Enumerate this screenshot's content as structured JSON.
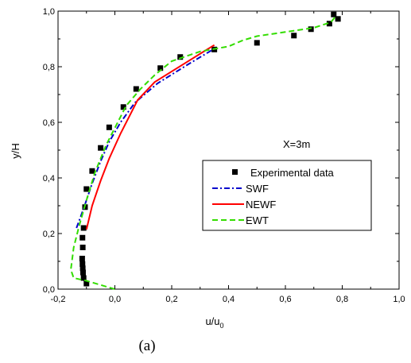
{
  "caption": "(a)",
  "chart_data": {
    "type": "line",
    "xlabel": "u/u",
    "xlabel_sub": "0",
    "ylabel": "y/H",
    "xlim": [
      -0.2,
      1.0
    ],
    "ylim": [
      0.0,
      1.0
    ],
    "xticks": [
      "-0,2",
      "0,0",
      "0,2",
      "0,4",
      "0,6",
      "0,8",
      "1,0"
    ],
    "yticks": [
      "0,0",
      "0,2",
      "0,4",
      "0,6",
      "0,8",
      "1,0"
    ],
    "annotation": "X=3m",
    "legend_position": "center-right",
    "grid": false,
    "series": [
      {
        "name": "Experimental data",
        "kind": "scatter",
        "color": "#000000",
        "points": [
          [
            -0.1,
            0.02
          ],
          [
            -0.11,
            0.04
          ],
          [
            -0.112,
            0.06
          ],
          [
            -0.113,
            0.075
          ],
          [
            -0.114,
            0.09
          ],
          [
            -0.115,
            0.11
          ],
          [
            -0.113,
            0.15
          ],
          [
            -0.114,
            0.185
          ],
          [
            -0.11,
            0.22
          ],
          [
            -0.105,
            0.295
          ],
          [
            -0.1,
            0.36
          ],
          [
            -0.08,
            0.425
          ],
          [
            -0.05,
            0.508
          ],
          [
            -0.02,
            0.582
          ],
          [
            0.03,
            0.655
          ],
          [
            0.075,
            0.72
          ],
          [
            0.16,
            0.795
          ],
          [
            0.23,
            0.835
          ],
          [
            0.35,
            0.862
          ],
          [
            0.5,
            0.886
          ],
          [
            0.63,
            0.912
          ],
          [
            0.69,
            0.935
          ],
          [
            0.755,
            0.955
          ],
          [
            0.77,
            0.988
          ],
          [
            0.785,
            0.972
          ]
        ]
      },
      {
        "name": "SWF",
        "kind": "line",
        "color": "#0000cc",
        "dash": "dashdot",
        "points": [
          [
            -0.135,
            0.22
          ],
          [
            -0.11,
            0.29
          ],
          [
            -0.08,
            0.38
          ],
          [
            -0.05,
            0.46
          ],
          [
            -0.02,
            0.53
          ],
          [
            0.02,
            0.6
          ],
          [
            0.07,
            0.67
          ],
          [
            0.15,
            0.74
          ],
          [
            0.26,
            0.81
          ],
          [
            0.35,
            0.865
          ]
        ]
      },
      {
        "name": "NEWF",
        "kind": "line",
        "color": "#ff0000",
        "dash": "solid",
        "points": [
          [
            -0.1,
            0.215
          ],
          [
            -0.08,
            0.3
          ],
          [
            -0.05,
            0.39
          ],
          [
            -0.02,
            0.47
          ],
          [
            0.02,
            0.56
          ],
          [
            0.08,
            0.68
          ],
          [
            0.14,
            0.745
          ],
          [
            0.25,
            0.815
          ],
          [
            0.35,
            0.878
          ]
        ]
      },
      {
        "name": "EWT",
        "kind": "line",
        "color": "#33dd00",
        "dash": "dashed",
        "points": [
          [
            0.0,
            0.0
          ],
          [
            -0.04,
            0.012
          ],
          [
            -0.1,
            0.03
          ],
          [
            -0.145,
            0.04
          ],
          [
            -0.155,
            0.07
          ],
          [
            -0.145,
            0.15
          ],
          [
            -0.125,
            0.23
          ],
          [
            -0.1,
            0.32
          ],
          [
            -0.07,
            0.42
          ],
          [
            -0.03,
            0.52
          ],
          [
            0.0,
            0.58
          ],
          [
            0.04,
            0.66
          ],
          [
            0.09,
            0.72
          ],
          [
            0.14,
            0.77
          ],
          [
            0.2,
            0.82
          ],
          [
            0.3,
            0.855
          ],
          [
            0.4,
            0.873
          ],
          [
            0.45,
            0.895
          ],
          [
            0.5,
            0.91
          ],
          [
            0.6,
            0.925
          ],
          [
            0.7,
            0.94
          ],
          [
            0.76,
            0.96
          ],
          [
            0.78,
            0.985
          ]
        ]
      }
    ]
  }
}
